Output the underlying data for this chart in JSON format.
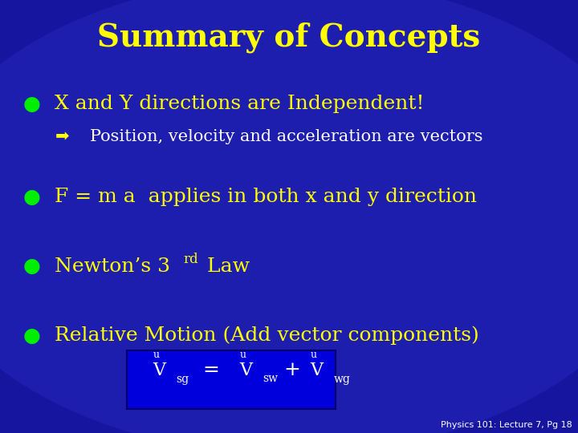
{
  "title": "Summary of Concepts",
  "title_color": "#FFFF00",
  "title_fontsize": 28,
  "bg_color": "#1c1c9e",
  "text_color": "#FFFF00",
  "white_color": "#FFFFFF",
  "green_color": "#00EE00",
  "bullet1": "X and Y directions are Independent!",
  "sub_bullet1": "Position, velocity and acceleration are vectors",
  "bullet2": "F = m a  applies in both x and y direction",
  "bullet3": "Newton’s 3",
  "bullet3_super": "rd",
  "bullet3_end": " Law",
  "bullet4": "Relative Motion (Add vector components)",
  "footer": "Physics 101: Lecture 7, Pg 18",
  "formula_box_color": "#0000dd",
  "formula_box_edge": "#000066",
  "bullet_fontsize": 18,
  "sub_fontsize": 15,
  "formula_V_fontsize": 16,
  "formula_sub_fontsize": 10,
  "formula_super_fontsize": 9,
  "footer_fontsize": 8
}
